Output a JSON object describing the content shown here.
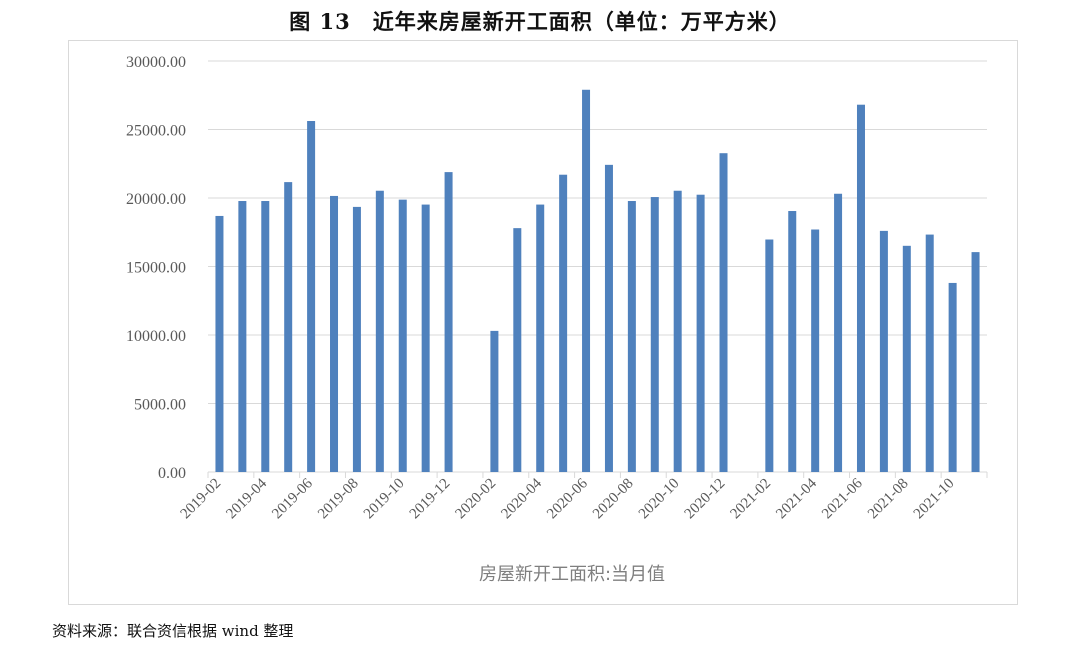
{
  "title": "图 13　近年来房屋新开工面积（单位：万平方米）",
  "source": "资料来源：联合资信根据 wind 整理",
  "chart_data": {
    "type": "bar",
    "title": "图 13　近年来房屋新开工面积（单位：万平方米）",
    "xlabel": "",
    "ylabel": "",
    "ylim": [
      0,
      30000
    ],
    "yticks": [
      "0.00",
      "5000.00",
      "10000.00",
      "15000.00",
      "20000.00",
      "25000.00",
      "30000.00"
    ],
    "grid": true,
    "legend_placement": "bottom",
    "bar_color": "#4f81bd",
    "categories": [
      "2019-02",
      "2019-03",
      "2019-04",
      "2019-05",
      "2019-06",
      "2019-07",
      "2019-08",
      "2019-09",
      "2019-10",
      "2019-11",
      "2019-12",
      "2020-01",
      "2020-02",
      "2020-03",
      "2020-04",
      "2020-05",
      "2020-06",
      "2020-07",
      "2020-08",
      "2020-09",
      "2020-10",
      "2020-11",
      "2020-12",
      "2021-01",
      "2021-02",
      "2021-03",
      "2021-04",
      "2021-05",
      "2021-06",
      "2021-07",
      "2021-08",
      "2021-09",
      "2021-10",
      "2021-11"
    ],
    "tick_labels": [
      "2019-02",
      "2019-04",
      "2019-06",
      "2019-08",
      "2019-10",
      "2019-12",
      "2020-02",
      "2020-04",
      "2020-06",
      "2020-08",
      "2020-10",
      "2020-12",
      "2021-02",
      "2021-04",
      "2021-06",
      "2021-08",
      "2021-10"
    ],
    "series": [
      {
        "name": "房屋新开工面积:当月值",
        "values": [
          18690,
          19780,
          19780,
          21160,
          25620,
          20150,
          19350,
          20530,
          19880,
          19520,
          21890,
          null,
          10300,
          17800,
          19520,
          21700,
          27900,
          22420,
          19780,
          20070,
          20530,
          20240,
          23270,
          null,
          16970,
          19050,
          17700,
          20310,
          26810,
          17600,
          16510,
          17330,
          13800,
          16050
        ]
      }
    ]
  }
}
